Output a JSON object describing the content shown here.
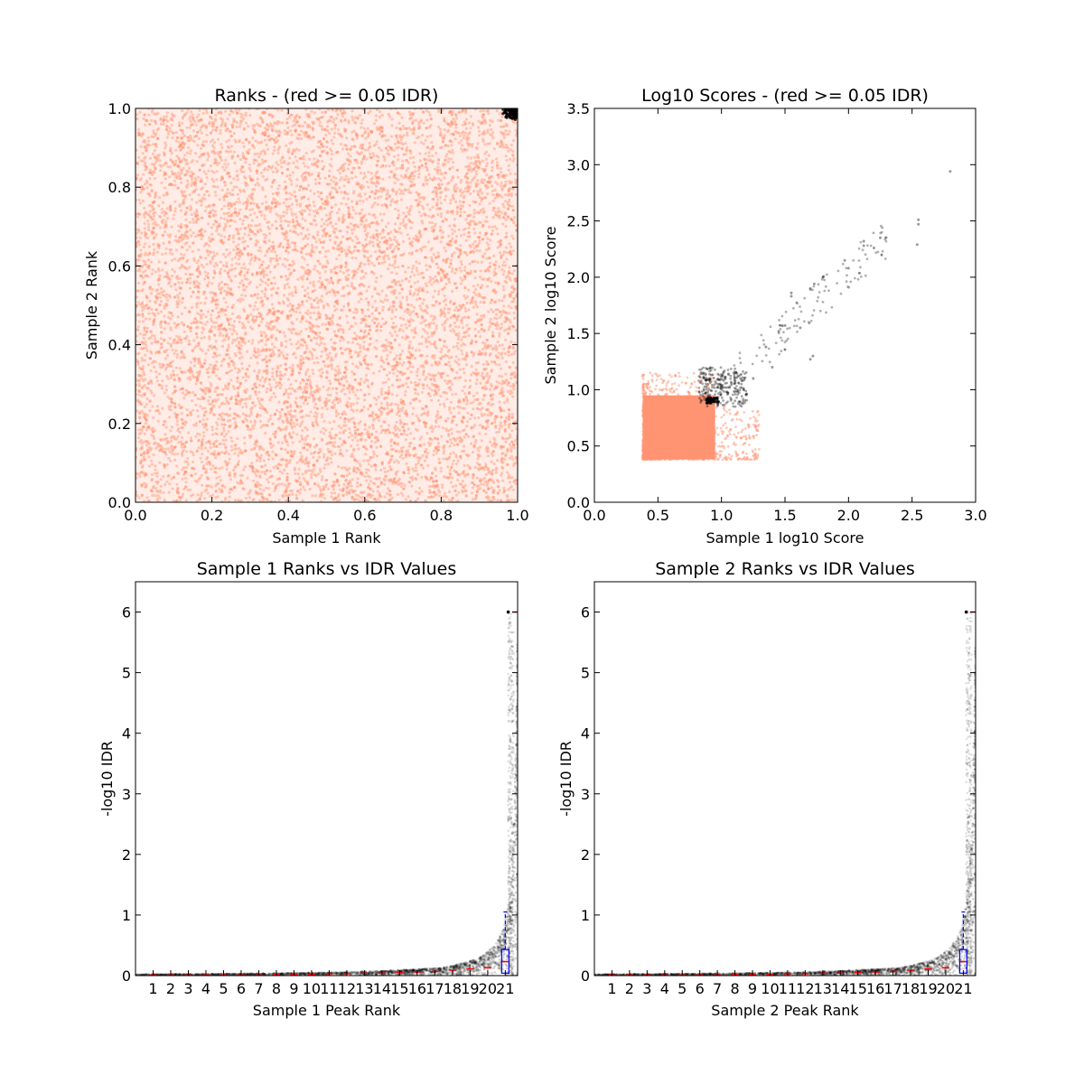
{
  "colors": {
    "below_threshold": "#ff9473",
    "above_threshold": "#000000",
    "boxplot": "#0000ff",
    "median": "#ff0000"
  },
  "chart_data": [
    {
      "id": "ranks",
      "type": "scatter",
      "title": "Ranks - (red >= 0.05 IDR)",
      "xlabel": "Sample 1 Rank",
      "ylabel": "Sample 2 Rank",
      "xlim": [
        0.0,
        1.0
      ],
      "ylim": [
        0.0,
        1.0
      ],
      "xticks": [
        "0.0",
        "0.2",
        "0.4",
        "0.6",
        "0.8",
        "1.0"
      ],
      "yticks": [
        "0.0",
        "0.2",
        "0.4",
        "0.6",
        "0.8",
        "1.0"
      ],
      "grid": false,
      "note_points": "dense uniform cloud of ~tens of thousands of points over the full unit square (red, IDR >= 0.05); small black cluster at the top-right corner (x > 0.96, y > 0.97)",
      "series": [
        {
          "color_key": "below_threshold",
          "x_range": [
            0.0,
            1.0
          ],
          "y_range": [
            0.0,
            1.0
          ]
        },
        {
          "color_key": "above_threshold",
          "x_range": [
            0.96,
            1.0
          ],
          "y_range": [
            0.97,
            1.0
          ]
        }
      ]
    },
    {
      "id": "scores",
      "type": "scatter",
      "title": "Log10 Scores - (red >= 0.05 IDR)",
      "xlabel": "Sample 1 log10 Score",
      "ylabel": "Sample 2 log10 Score",
      "xlim": [
        0.0,
        3.0
      ],
      "ylim": [
        0.0,
        3.5
      ],
      "xticks": [
        "0.0",
        "0.5",
        "1.0",
        "1.5",
        "2.0",
        "2.5",
        "3.0"
      ],
      "yticks": [
        "0.0",
        "0.5",
        "1.0",
        "1.5",
        "2.0",
        "2.5",
        "3.0",
        "3.5"
      ],
      "grid": false,
      "series": [
        {
          "color_key": "below_threshold",
          "dense_block": {
            "x": [
              0.38,
              0.95
            ],
            "y": [
              0.38,
              0.95
            ]
          },
          "fringe": {
            "x": [
              0.38,
              1.3
            ],
            "y": [
              0.38,
              1.15
            ]
          }
        },
        {
          "color_key": "above_threshold",
          "core": {
            "x": [
              0.82,
              1.2
            ],
            "y": [
              0.85,
              1.2
            ]
          },
          "tail_points": [
            [
              2.8,
              2.94
            ],
            [
              2.55,
              2.51
            ],
            [
              2.55,
              2.47
            ],
            [
              2.54,
              2.29
            ],
            [
              2.25,
              2.35
            ],
            [
              2.2,
              2.26
            ],
            [
              2.12,
              2.32
            ],
            [
              2.12,
              2.28
            ],
            [
              2.0,
              2.08
            ],
            [
              1.97,
              2.15
            ],
            [
              1.8,
              2.0
            ],
            [
              1.73,
              1.94
            ],
            [
              1.7,
              1.9
            ],
            [
              1.62,
              1.55
            ],
            [
              1.55,
              1.83
            ],
            [
              1.55,
              1.86
            ],
            [
              1.7,
              1.27
            ],
            [
              1.72,
              1.3
            ],
            [
              1.5,
              1.57
            ],
            [
              1.45,
              1.52
            ],
            [
              1.35,
              1.38
            ],
            [
              1.4,
              1.2
            ],
            [
              1.25,
              1.1
            ]
          ]
        }
      ]
    },
    {
      "id": "s1_idr",
      "type": "scatter",
      "title": "Sample 1 Ranks vs IDR Values",
      "xlabel": "Sample 1 Peak Rank",
      "ylabel": "-log10 IDR",
      "xlim": [
        0.0,
        1.0
      ],
      "ylim": [
        0.0,
        6.5
      ],
      "xticks": [
        "1",
        "2",
        "3",
        "4",
        "5",
        "6",
        "7",
        "8",
        "9",
        "10",
        "11",
        "12",
        "13",
        "14",
        "15",
        "16",
        "17",
        "18",
        "19",
        "20",
        "21"
      ],
      "yticks": [
        "0",
        "1",
        "2",
        "3",
        "4",
        "5",
        "6"
      ],
      "grid": false,
      "curve": {
        "x": [
          0.0,
          0.5,
          0.8,
          0.9,
          0.95,
          0.97,
          0.98,
          0.99,
          0.995,
          1.0
        ],
        "y": [
          0.02,
          0.05,
          0.13,
          0.3,
          0.6,
          1.0,
          1.5,
          2.5,
          4.0,
          6.0
        ]
      },
      "box_medians": [
        0.01,
        0.01,
        0.01,
        0.01,
        0.01,
        0.01,
        0.01,
        0.02,
        0.02,
        0.02,
        0.03,
        0.03,
        0.04,
        0.04,
        0.05,
        0.06,
        0.07,
        0.09,
        0.11,
        0.13,
        0.23
      ],
      "last_box": {
        "q1": 0.04,
        "q3": 0.43,
        "whisker_high": 1.05
      }
    },
    {
      "id": "s2_idr",
      "type": "scatter",
      "title": "Sample 2 Ranks vs IDR Values",
      "xlabel": "Sample 2 Peak Rank",
      "ylabel": "-log10 IDR",
      "xlim": [
        0.0,
        1.0
      ],
      "ylim": [
        0.0,
        6.5
      ],
      "xticks": [
        "1",
        "2",
        "3",
        "4",
        "5",
        "6",
        "7",
        "8",
        "9",
        "10",
        "11",
        "12",
        "13",
        "14",
        "15",
        "16",
        "17",
        "18",
        "19",
        "20",
        "21"
      ],
      "yticks": [
        "0",
        "1",
        "2",
        "3",
        "4",
        "5",
        "6"
      ],
      "grid": false,
      "curve": {
        "x": [
          0.0,
          0.5,
          0.8,
          0.9,
          0.95,
          0.97,
          0.98,
          0.99,
          0.995,
          1.0
        ],
        "y": [
          0.02,
          0.05,
          0.13,
          0.3,
          0.6,
          1.0,
          1.5,
          2.5,
          4.0,
          6.0
        ]
      },
      "box_medians": [
        0.01,
        0.01,
        0.01,
        0.01,
        0.01,
        0.01,
        0.01,
        0.02,
        0.02,
        0.02,
        0.03,
        0.03,
        0.04,
        0.04,
        0.05,
        0.06,
        0.07,
        0.09,
        0.11,
        0.13,
        0.23
      ],
      "last_box": {
        "q1": 0.04,
        "q3": 0.43,
        "whisker_high": 1.05
      }
    }
  ]
}
